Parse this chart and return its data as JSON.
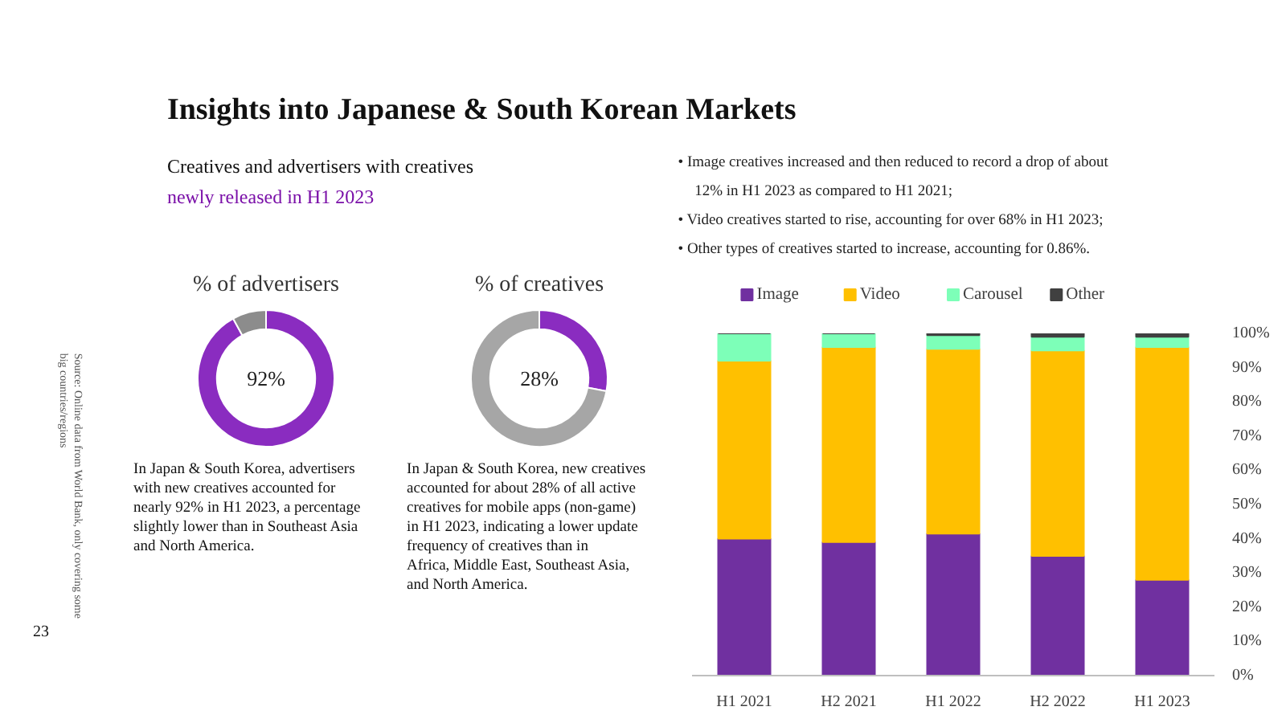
{
  "chart_data": [
    {
      "type": "other",
      "title": "Insights into Japanese & South Korean Markets",
      "subtitle": "Creatives and advertisers with creatives",
      "annotations": [
        "newly released in H1 2023",
        "• Image creatives increased and then reduced to record a drop of about 12% in H1 2023 as compared to H1 2021;",
        "• Video creatives started to rise, accounting for over 68% in H1 2023;",
        "• Other types of creatives started to increase, accounting for 0.86%.",
        "Source: Online data from World Bank, only covering some big countries/regions",
        "23"
      ]
    },
    {
      "type": "donut",
      "title": "% of advertisers",
      "categories": [
        null,
        null
      ],
      "values": [
        92,
        8
      ],
      "colors": [
        "#8a2cc0",
        "#8c8c8c"
      ],
      "value_labels": [
        "92%",
        null
      ],
      "annotations": [
        "In Japan & South Korea, advertisers with new creatives accounted for nearly 92% in H1 2023, a percentage slightly lower than in Southeast Asia and North America."
      ]
    },
    {
      "type": "donut",
      "title": "% of creatives",
      "categories": [
        null,
        null
      ],
      "values": [
        28,
        72
      ],
      "colors": [
        "#8a2cc0",
        "#a6a6a6"
      ],
      "value_labels": [
        "28%",
        null
      ],
      "annotations": [
        "In Japan & South Korea, new creatives accounted for about 28% of all active creatives for mobile apps (non-game) in H1 2023, indicating a lower update frequency of creatives than in Africa, Middle East, Southeast Asia, and North America."
      ]
    },
    {
      "type": "bar",
      "stacked": true,
      "legend": "top",
      "grid": false,
      "categories": [
        "H1 2021",
        "H2 2021",
        "H1 2022",
        "H2 2022",
        "H1 2023"
      ],
      "ylim": [
        0,
        100
      ],
      "yticks": [
        {
          "value": 0,
          "label": "0%"
        },
        {
          "value": 10,
          "label": "10%"
        },
        {
          "value": 20,
          "label": "20%"
        },
        {
          "value": 30,
          "label": "30%"
        },
        {
          "value": 40,
          "label": "40%"
        },
        {
          "value": 50,
          "label": "50%"
        },
        {
          "value": 60,
          "label": "60%"
        },
        {
          "value": 70,
          "label": "70%"
        },
        {
          "value": 80,
          "label": "80%"
        },
        {
          "value": 90,
          "label": "90%"
        },
        {
          "value": 100,
          "label": "100%"
        }
      ],
      "series": [
        {
          "name": "Image",
          "color": "#7030a0",
          "values": [
            40,
            39,
            41.5,
            35,
            28
          ]
        },
        {
          "name": "Video",
          "color": "#ffc000",
          "values": [
            52,
            57,
            54,
            60,
            68
          ]
        },
        {
          "name": "Carousel",
          "color": "#7dffb8",
          "values": [
            8,
            4,
            4,
            4,
            3
          ]
        },
        {
          "name": "Other",
          "color": "#404040",
          "values": [
            0,
            0,
            0.5,
            1,
            1
          ]
        }
      ]
    }
  ]
}
